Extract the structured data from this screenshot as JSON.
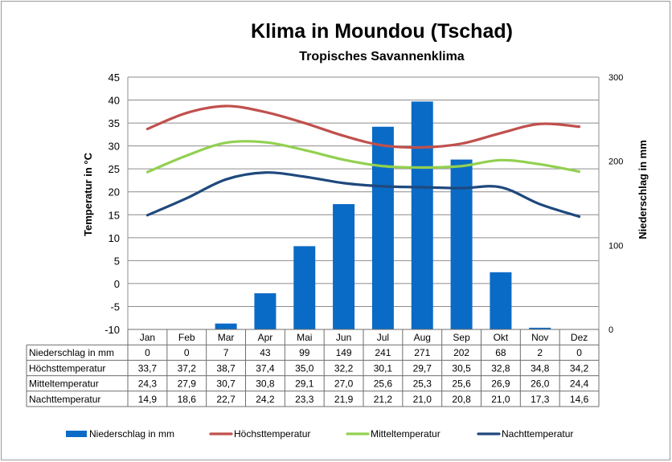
{
  "chart_data": {
    "type": "bar+line",
    "title": "Klima in Moundou (Tschad)",
    "subtitle": "Tropisches Savannenklima",
    "ylabel_left": "Temperatur in °C",
    "ylabel_right": "Niederschlag in mm",
    "ylim_left": [
      -10,
      45
    ],
    "yticks_left": [
      "45",
      "40",
      "35",
      "30",
      "25",
      "20",
      "15",
      "10",
      "5",
      "0",
      "-5",
      "-10"
    ],
    "ylim_right": [
      0,
      300
    ],
    "yticks_right": [
      "300",
      "200",
      "100",
      "0"
    ],
    "grid": true,
    "legend_position": "bottom",
    "categories": [
      "Jan",
      "Feb",
      "Mar",
      "Apr",
      "Mai",
      "Jun",
      "Jul",
      "Aug",
      "Sep",
      "Okt",
      "Nov",
      "Dez"
    ],
    "series": [
      {
        "name": "Niederschlag in mm",
        "type": "bar",
        "axis": "right",
        "color": "#0a6bc6",
        "values": [
          0,
          0,
          7,
          43,
          99,
          149,
          241,
          271,
          202,
          68,
          2,
          0
        ],
        "labels": [
          "0",
          "0",
          "7",
          "43",
          "99",
          "149",
          "241",
          "271",
          "202",
          "68",
          "2",
          "0"
        ]
      },
      {
        "name": "Höchsttemperatur",
        "type": "line",
        "axis": "left",
        "color": "#c0504d",
        "values": [
          33.7,
          37.2,
          38.7,
          37.4,
          35.0,
          32.2,
          30.1,
          29.7,
          30.5,
          32.8,
          34.8,
          34.2
        ],
        "labels": [
          "33,7",
          "37,2",
          "38,7",
          "37,4",
          "35,0",
          "32,2",
          "30,1",
          "29,7",
          "30,5",
          "32,8",
          "34,8",
          "34,2"
        ]
      },
      {
        "name": "Mitteltemperatur",
        "type": "line",
        "axis": "left",
        "color": "#92d050",
        "values": [
          24.3,
          27.9,
          30.7,
          30.8,
          29.1,
          27.0,
          25.6,
          25.3,
          25.6,
          26.9,
          26.0,
          24.4
        ],
        "labels": [
          "24,3",
          "27,9",
          "30,7",
          "30,8",
          "29,1",
          "27,0",
          "25,6",
          "25,3",
          "25,6",
          "26,9",
          "26,0",
          "24,4"
        ]
      },
      {
        "name": "Nachttemperatur",
        "type": "line",
        "axis": "left",
        "color": "#1f497d",
        "values": [
          14.9,
          18.6,
          22.7,
          24.2,
          23.3,
          21.9,
          21.2,
          21.0,
          20.8,
          21.0,
          17.3,
          14.6
        ],
        "labels": [
          "14,9",
          "18,6",
          "22,7",
          "24,2",
          "23,3",
          "21,9",
          "21,2",
          "21,0",
          "20,8",
          "21,0",
          "17,3",
          "14,6"
        ]
      }
    ]
  }
}
